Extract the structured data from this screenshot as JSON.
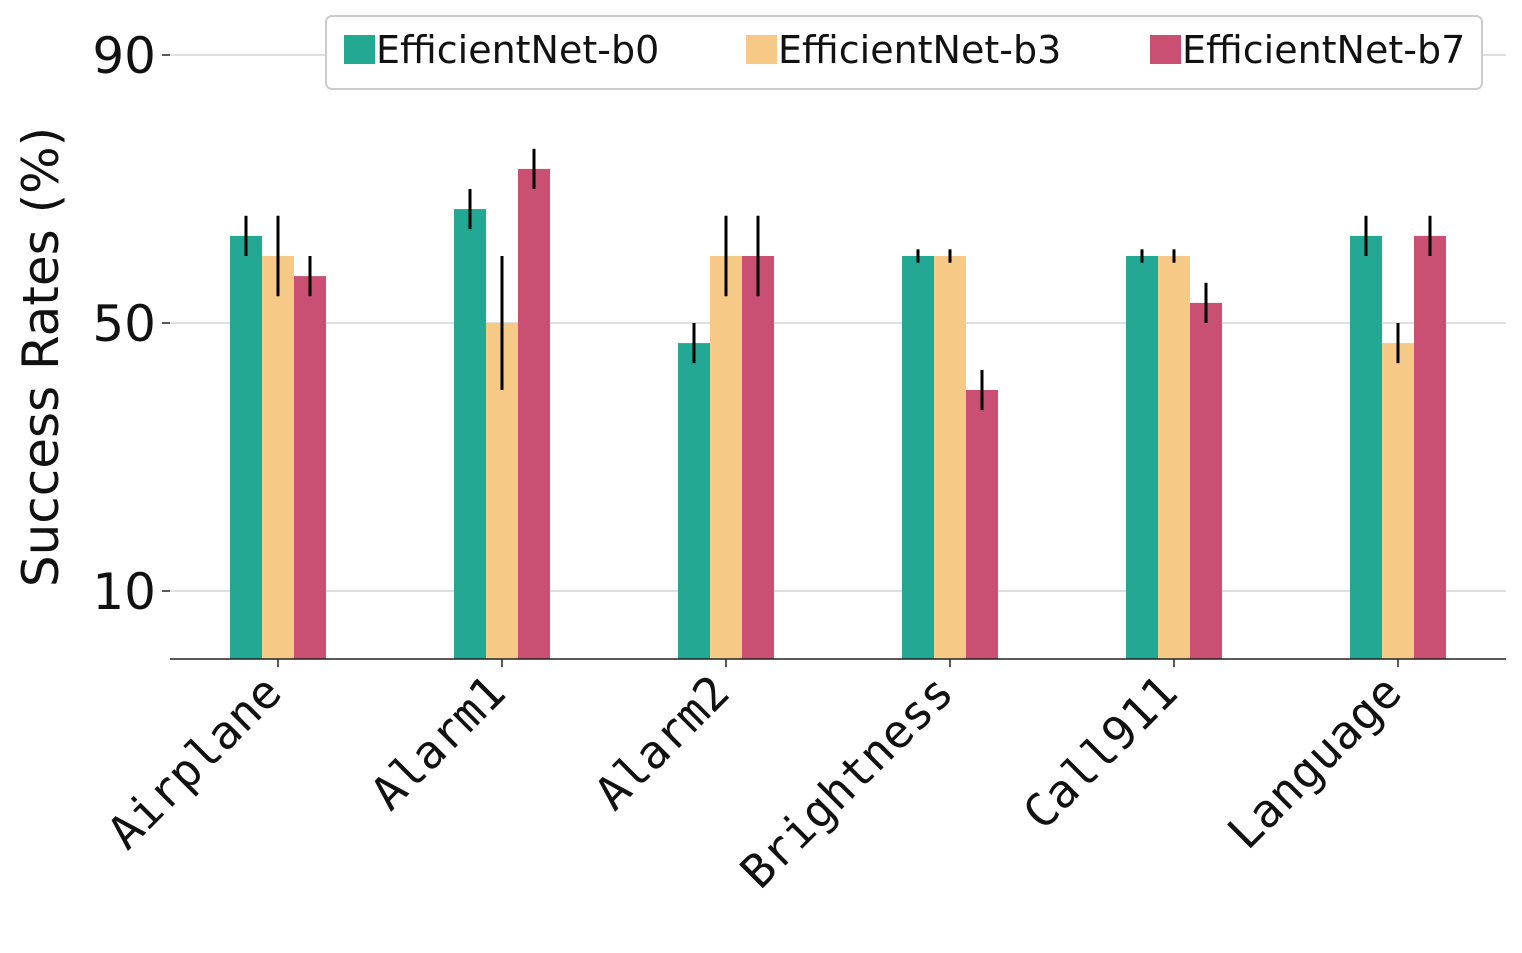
{
  "chart_data": {
    "type": "bar",
    "title": "",
    "xlabel": "",
    "ylabel": "Success Rates (%)",
    "yticks": [
      10,
      50,
      90
    ],
    "ylim": [
      0,
      95
    ],
    "grid": true,
    "legend_position": "top",
    "categories": [
      "Airplane",
      "Alarm1",
      "Alarm2",
      "Brightness",
      "Call911",
      "Language"
    ],
    "series": [
      {
        "name": "EfficientNet-b0",
        "color": "#23a894",
        "values": [
          63,
          67,
          47,
          60,
          60,
          63
        ],
        "errors": [
          3,
          3,
          3,
          1,
          1,
          3
        ]
      },
      {
        "name": "EfficientNet-b3",
        "color": "#f6c987",
        "values": [
          60,
          50,
          60,
          60,
          60,
          47
        ],
        "errors": [
          6,
          10,
          6,
          1,
          1,
          3
        ]
      },
      {
        "name": "EfficientNet-b7",
        "color": "#c94f73",
        "values": [
          57,
          73,
          60,
          40,
          53,
          63
        ],
        "errors": [
          3,
          3,
          6,
          3,
          3,
          3
        ]
      }
    ]
  }
}
